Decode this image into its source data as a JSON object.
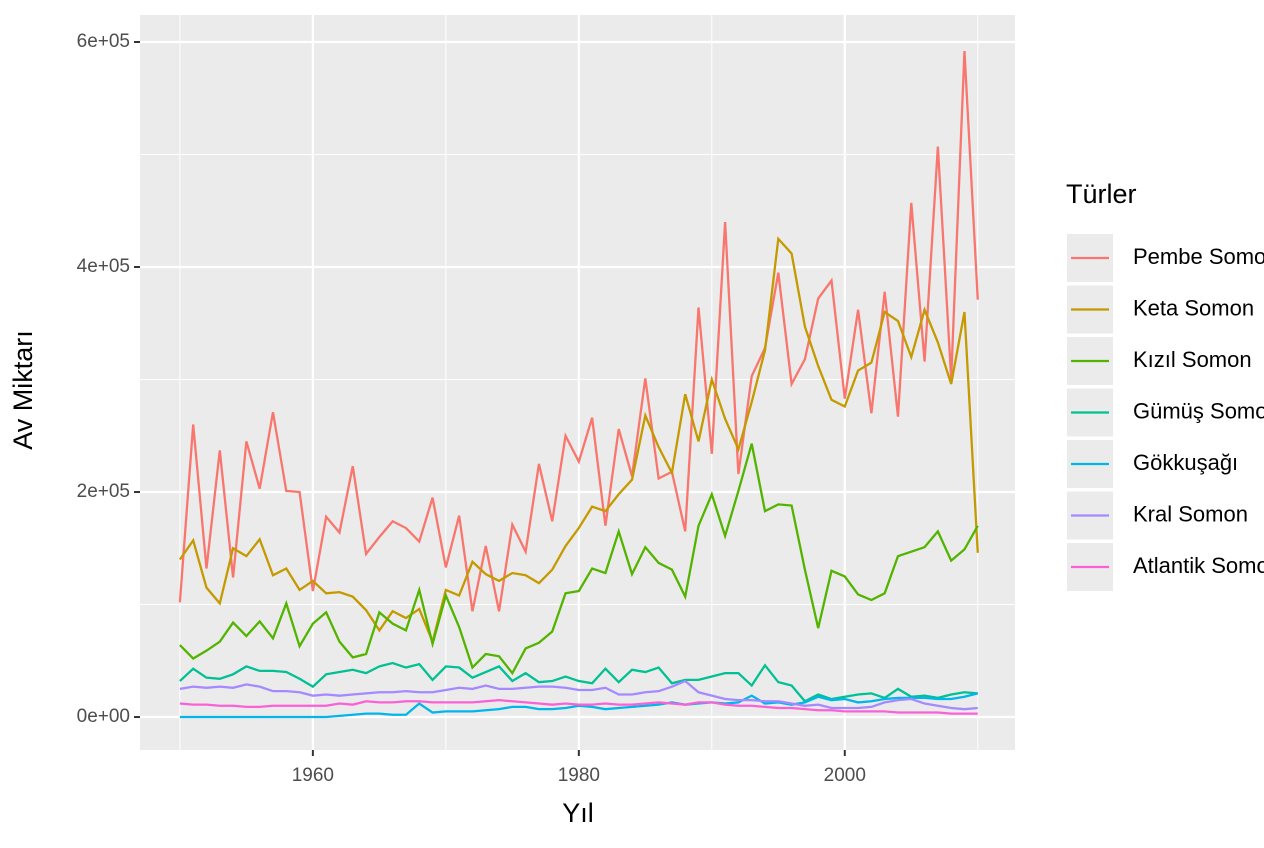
{
  "chart_data": {
    "type": "line",
    "x_label": "Yıl",
    "y_label": "Av Miktarı",
    "legend_title": "Türler",
    "legend": "right",
    "grid": true,
    "x": [
      1950,
      1951,
      1952,
      1953,
      1954,
      1955,
      1956,
      1957,
      1958,
      1959,
      1960,
      1961,
      1962,
      1963,
      1964,
      1965,
      1966,
      1967,
      1968,
      1969,
      1970,
      1971,
      1972,
      1973,
      1974,
      1975,
      1976,
      1977,
      1978,
      1979,
      1980,
      1981,
      1982,
      1983,
      1984,
      1985,
      1986,
      1987,
      1988,
      1989,
      1990,
      1991,
      1992,
      1993,
      1994,
      1995,
      1996,
      1997,
      1998,
      1999,
      2000,
      2001,
      2002,
      2003,
      2004,
      2005,
      2006,
      2007,
      2008,
      2009,
      2010
    ],
    "xlim": [
      1947,
      2012.8
    ],
    "xticks": [
      1960,
      1980,
      2000
    ],
    "x_minor_ticks": [
      1950,
      1970,
      1990,
      2010
    ],
    "ylim": [
      -29300,
      624000
    ],
    "yticks": [
      {
        "value": 0,
        "label": "0e+00"
      },
      {
        "value": 200000,
        "label": "2e+05"
      },
      {
        "value": 400000,
        "label": "4e+05"
      },
      {
        "value": 600000,
        "label": "6e+05"
      }
    ],
    "y_minor_ticks": [
      100000,
      300000,
      500000
    ],
    "series": [
      {
        "name": "Pembe Somon",
        "color": "#F8766D",
        "values": [
          102000,
          260000,
          132000,
          237000,
          124000,
          245000,
          203000,
          271000,
          201000,
          200000,
          112000,
          178000,
          164000,
          223000,
          145000,
          160000,
          174000,
          168000,
          156000,
          195000,
          133000,
          179000,
          94000,
          152000,
          94000,
          171000,
          147000,
          225000,
          174000,
          250000,
          227000,
          266000,
          170000,
          256000,
          214000,
          301000,
          212000,
          218000,
          165000,
          364000,
          234000,
          440000,
          216000,
          303000,
          328000,
          395000,
          296000,
          318000,
          372000,
          388000,
          283000,
          362000,
          270000,
          378000,
          267000,
          457000,
          316000,
          507000,
          301000,
          592000,
          371000
        ]
      },
      {
        "name": "Keta Somon",
        "color": "#C49A00",
        "values": [
          140000,
          157000,
          115000,
          101000,
          150000,
          143000,
          158000,
          126000,
          132000,
          113000,
          121000,
          110000,
          111000,
          107000,
          95000,
          77000,
          94000,
          88000,
          96000,
          67000,
          113000,
          108000,
          138000,
          127000,
          121000,
          128000,
          126000,
          119000,
          131000,
          152000,
          168000,
          187000,
          183000,
          198000,
          211000,
          268000,
          240000,
          217000,
          287000,
          245000,
          300000,
          265000,
          238000,
          280000,
          326000,
          425000,
          412000,
          347000,
          312000,
          282000,
          276000,
          308000,
          315000,
          360000,
          352000,
          320000,
          362000,
          333000,
          296000,
          360000,
          146000
        ]
      },
      {
        "name": "Kızıl Somon",
        "color": "#53B400",
        "values": [
          64000,
          52000,
          59000,
          67000,
          84000,
          72000,
          85000,
          70000,
          101000,
          63000,
          83000,
          93000,
          67000,
          53000,
          56000,
          93000,
          83000,
          77000,
          113000,
          65000,
          108000,
          80000,
          44000,
          56000,
          54000,
          39000,
          61000,
          66000,
          76000,
          110000,
          112000,
          132000,
          128000,
          165000,
          127000,
          151000,
          137000,
          131000,
          107000,
          170000,
          198000,
          161000,
          201000,
          243000,
          183000,
          189000,
          188000,
          131000,
          79000,
          130000,
          125000,
          109000,
          104000,
          110000,
          143000,
          147000,
          151000,
          165000,
          139000,
          149000,
          170000
        ]
      },
      {
        "name": "Gümüş Somon",
        "color": "#00C094",
        "values": [
          32000,
          43000,
          35000,
          34000,
          38000,
          45000,
          41000,
          41000,
          40000,
          34000,
          27000,
          38000,
          40000,
          42000,
          39000,
          45000,
          48000,
          44000,
          47000,
          33000,
          45000,
          44000,
          35000,
          40000,
          45000,
          32000,
          39000,
          31000,
          32000,
          36000,
          32000,
          30000,
          43000,
          31000,
          42000,
          40000,
          44000,
          30000,
          33000,
          33000,
          36000,
          39000,
          39000,
          28000,
          46000,
          31000,
          28000,
          14000,
          20000,
          16000,
          18000,
          20000,
          21000,
          17000,
          25000,
          18000,
          19000,
          17000,
          20000,
          22000,
          21000
        ]
      },
      {
        "name": "Gökkuşağı",
        "color": "#00B6EB",
        "values": [
          0,
          0,
          0,
          0,
          0,
          0,
          0,
          0,
          0,
          0,
          0,
          0,
          1000,
          2000,
          3000,
          3000,
          2000,
          2000,
          12000,
          4000,
          5000,
          5000,
          5000,
          6000,
          7000,
          9000,
          9000,
          7000,
          7000,
          8000,
          10000,
          9000,
          7000,
          8000,
          9000,
          10000,
          11000,
          13000,
          11000,
          12000,
          13000,
          12000,
          13000,
          19000,
          12000,
          13000,
          11000,
          13000,
          18000,
          15000,
          16000,
          13000,
          14000,
          16000,
          17000,
          17000,
          17000,
          16000,
          16000,
          18000,
          21000
        ]
      },
      {
        "name": "Kral Somon",
        "color": "#A58AFF",
        "values": [
          25000,
          27000,
          26000,
          27000,
          26000,
          29000,
          27000,
          23000,
          23000,
          22000,
          19000,
          20000,
          19000,
          20000,
          21000,
          22000,
          22000,
          23000,
          22000,
          22000,
          24000,
          26000,
          25000,
          28000,
          25000,
          25000,
          26000,
          27000,
          27000,
          26000,
          24000,
          24000,
          26000,
          20000,
          20000,
          22000,
          23000,
          27000,
          32000,
          22000,
          19000,
          16000,
          15000,
          15000,
          14000,
          14000,
          12000,
          10000,
          11000,
          8000,
          8000,
          8000,
          9000,
          13000,
          15000,
          16000,
          12000,
          10000,
          8000,
          7000,
          8000
        ]
      },
      {
        "name": "Atlantik Somon",
        "color": "#FB61D7",
        "values": [
          12000,
          11000,
          11000,
          10000,
          10000,
          9000,
          9000,
          10000,
          10000,
          10000,
          10000,
          10000,
          12000,
          11000,
          14000,
          13000,
          13000,
          14000,
          14000,
          13000,
          13000,
          13000,
          13000,
          14000,
          15000,
          14000,
          13000,
          12000,
          11000,
          12000,
          11000,
          11000,
          12000,
          11000,
          11000,
          12000,
          13000,
          12000,
          11000,
          13000,
          13000,
          11000,
          10000,
          10000,
          9000,
          8000,
          8000,
          7000,
          6000,
          6000,
          5000,
          5000,
          5000,
          5000,
          4000,
          4000,
          4000,
          4000,
          3000,
          3000,
          3000
        ]
      }
    ]
  }
}
